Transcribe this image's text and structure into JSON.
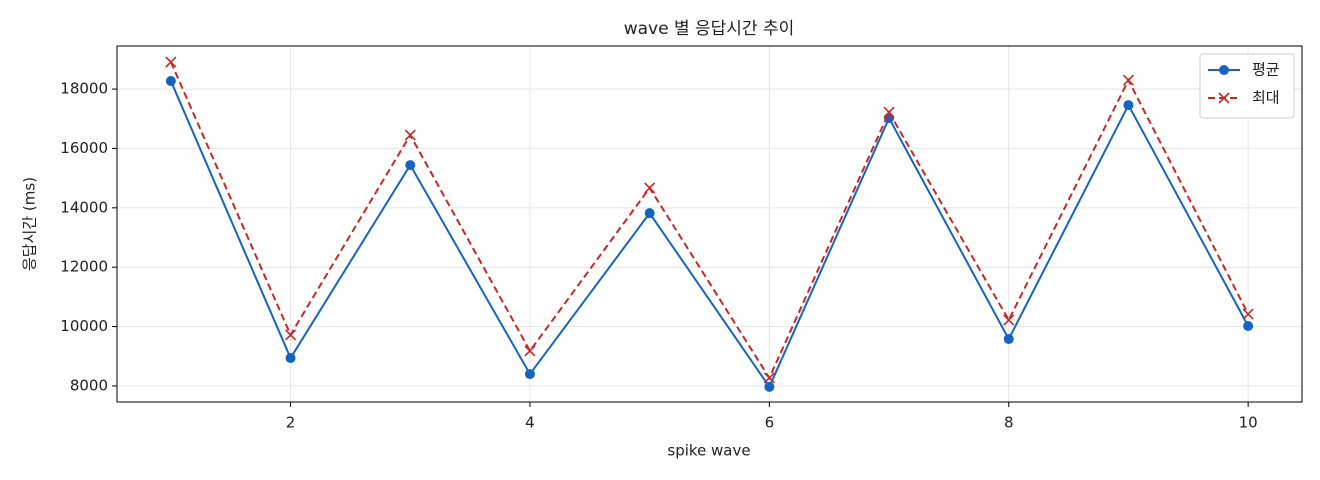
{
  "chart_data": {
    "type": "line",
    "title": "wave 별 응답시간 추이",
    "x_label": "spike wave",
    "y_label": "응답시간 (ms)",
    "x": [
      1,
      2,
      3,
      4,
      5,
      6,
      7,
      8,
      9,
      10
    ],
    "series": [
      {
        "name": "평균",
        "color": "#1565c0",
        "marker": "circle",
        "dash": "solid",
        "values": [
          18270,
          8940,
          15440,
          8400,
          13820,
          7970,
          17020,
          9580,
          17460,
          10020
        ]
      },
      {
        "name": "최대",
        "color": "#c62828",
        "marker": "x",
        "dash": "dashed",
        "values": [
          18910,
          9720,
          16450,
          9180,
          14670,
          8270,
          17220,
          10220,
          18300,
          10420
        ]
      }
    ],
    "xlim": [
      0.55,
      10.45
    ],
    "xticks": [
      2,
      4,
      6,
      8,
      10
    ],
    "ylim": [
      7460,
      19450
    ],
    "yticks": [
      8000,
      10000,
      12000,
      14000,
      16000,
      18000
    ],
    "grid": true,
    "legend": "upper right"
  }
}
